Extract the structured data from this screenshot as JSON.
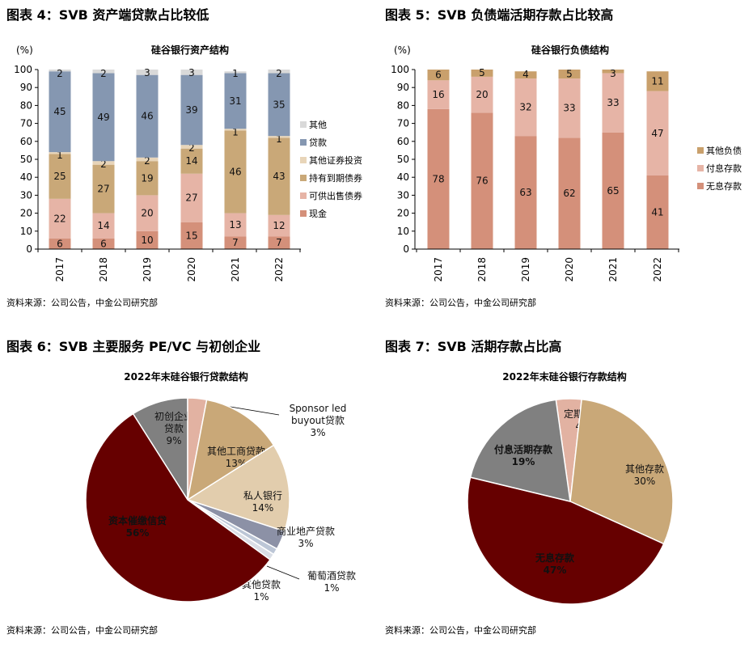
{
  "chart_data": [
    {
      "type": "bar",
      "stacked": true,
      "figure_title": "图表 4：SVB 资产端贷款占比较低",
      "title": "硅谷银行资产结构",
      "ylabel": "(%)",
      "ylim": [
        0,
        100
      ],
      "yticks": [
        0,
        10,
        20,
        30,
        40,
        50,
        60,
        70,
        80,
        90,
        100
      ],
      "categories": [
        "2017",
        "2018",
        "2019",
        "2020",
        "2021",
        "2022"
      ],
      "legend_position": "right",
      "series": [
        {
          "name": "现金",
          "color": "#d4907a",
          "values": [
            6,
            6,
            10,
            15,
            7,
            7
          ]
        },
        {
          "name": "可供出售债券",
          "color": "#e6b4a6",
          "values": [
            22,
            14,
            20,
            27,
            13,
            12
          ]
        },
        {
          "name": "持有到期债券",
          "color": "#c9a878",
          "values": [
            25,
            27,
            19,
            14,
            46,
            43
          ]
        },
        {
          "name": "其他证券投资",
          "color": "#e8d5b9",
          "values": [
            1,
            2,
            2,
            2,
            1,
            1
          ]
        },
        {
          "name": "贷款",
          "color": "#8597b1",
          "values": [
            45,
            49,
            46,
            39,
            31,
            35
          ]
        },
        {
          "name": "其他",
          "color": "#d9d9d9",
          "values": [
            2,
            2,
            3,
            3,
            1,
            2
          ]
        }
      ],
      "source": "资料来源：公司公告，中金公司研究部"
    },
    {
      "type": "bar",
      "stacked": true,
      "figure_title": "图表 5：SVB 负债端活期存款占比较高",
      "title": "硅谷银行负债结构",
      "ylabel": "(%)",
      "ylim": [
        0,
        100
      ],
      "yticks": [
        0,
        10,
        20,
        30,
        40,
        50,
        60,
        70,
        80,
        90,
        100
      ],
      "categories": [
        "2017",
        "2018",
        "2019",
        "2020",
        "2021",
        "2022"
      ],
      "legend_position": "right",
      "series": [
        {
          "name": "无息存款",
          "color": "#d4907a",
          "values": [
            78,
            76,
            63,
            62,
            65,
            41
          ]
        },
        {
          "name": "付息存款",
          "color": "#e6b4a6",
          "values": [
            16,
            20,
            32,
            33,
            33,
            47
          ]
        },
        {
          "name": "其他负债",
          "color": "#c9a06c",
          "values": [
            6,
            5,
            4,
            5,
            3,
            11
          ]
        }
      ],
      "source": "资料来源：公司公告，中金公司研究部"
    },
    {
      "type": "pie",
      "figure_title": "图表 6：SVB 主要服务 PE/VC 与初创企业",
      "title": "2022年末硅谷银行贷款结构",
      "slices": [
        {
          "name": "初创企业贷款",
          "value": 9,
          "label": "9%",
          "color": "#808080"
        },
        {
          "name": "Sponsor led buyout贷款",
          "value": 3,
          "label": "3%",
          "color": "#e2b2a2"
        },
        {
          "name": "其他工商贷款",
          "value": 13,
          "label": "13%",
          "color": "#c9a878"
        },
        {
          "name": "私人银行",
          "value": 14,
          "label": "14%",
          "color": "#e2cdad"
        },
        {
          "name": "商业地产贷款",
          "value": 3,
          "label": "3%",
          "color": "#8c91a6"
        },
        {
          "name": "葡萄酒贷款",
          "value": 1,
          "label": "1%",
          "color": "#bcc6d6"
        },
        {
          "name": "其他贷款",
          "value": 1,
          "label": "1%",
          "color": "#dadee6"
        },
        {
          "name": "资本催缴信贷",
          "value": 56,
          "label": "56%",
          "color": "#660000"
        }
      ],
      "source": "资料来源：公司公告，中金公司研究部"
    },
    {
      "type": "pie",
      "figure_title": "图表 7：SVB 活期存款占比高",
      "title": "2022年末硅谷银行存款结构",
      "slices": [
        {
          "name": "定期存款",
          "value": 4,
          "label": "4%",
          "color": "#e2b2a2"
        },
        {
          "name": "其他存款",
          "value": 30,
          "label": "30%",
          "color": "#c9a878"
        },
        {
          "name": "无息存款",
          "value": 47,
          "label": "47%",
          "color": "#660000"
        },
        {
          "name": "付息活期存款",
          "value": 19,
          "label": "19%",
          "color": "#808080"
        }
      ],
      "source": "资料来源：公司公告，中金公司研究部"
    }
  ]
}
